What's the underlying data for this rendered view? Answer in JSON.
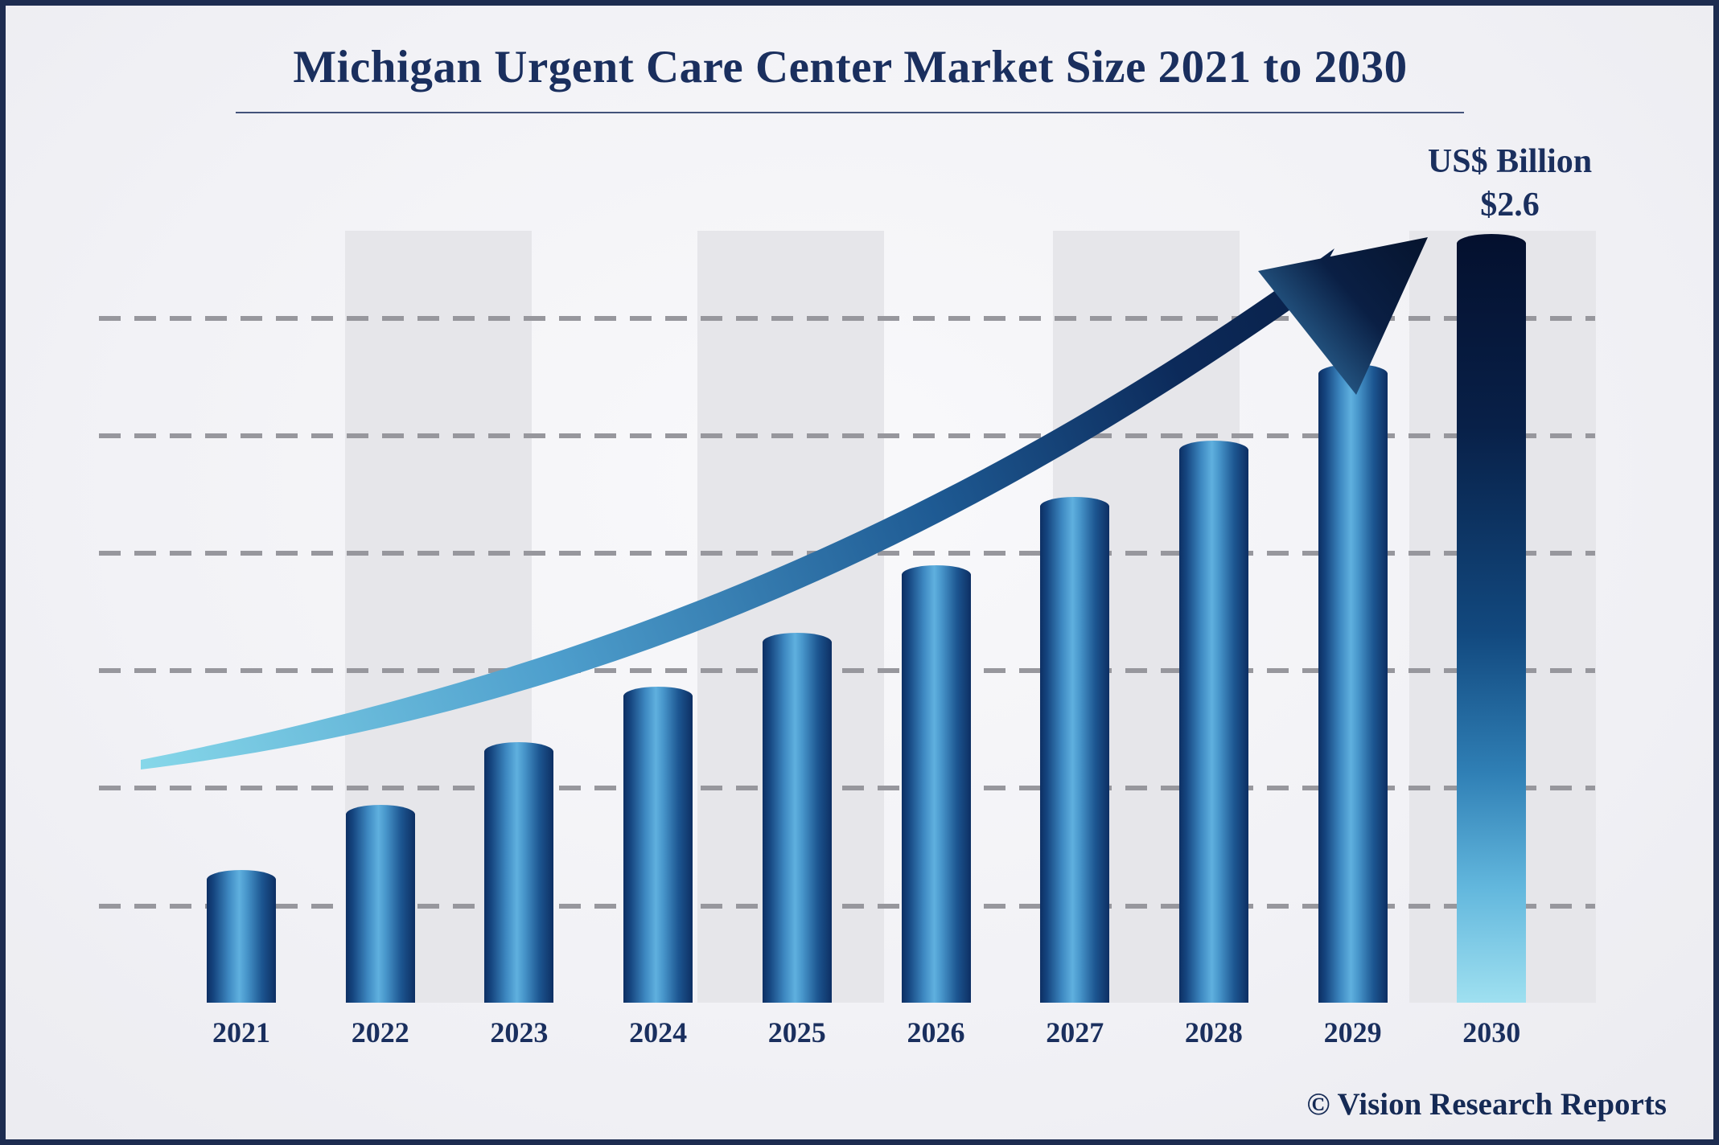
{
  "header": {
    "title": "Michigan Urgent Care Center Market Size 2021 to 2030"
  },
  "annotation": {
    "unit": "US$ Billion",
    "value": "$2.6"
  },
  "footer": {
    "credit": "© Vision Research Reports"
  },
  "chart_data": {
    "type": "bar",
    "title": "Michigan Urgent Care Center Market Size 2021 to 2030",
    "unit": "US$ Billion",
    "categories": [
      "2021",
      "2022",
      "2023",
      "2024",
      "2025",
      "2026",
      "2027",
      "2028",
      "2029",
      "2030"
    ],
    "values": [
      0.45,
      0.67,
      0.88,
      1.07,
      1.25,
      1.48,
      1.71,
      1.9,
      2.16,
      2.6
    ],
    "value_labels": {
      "2030": "$2.6"
    },
    "xlabel": "",
    "ylabel": "US$ Billion",
    "ylim": [
      0,
      2.8
    ],
    "grid": "horizontal-dashed",
    "legend": "none",
    "colors": {
      "bar_edge": "#0d2f63",
      "bar_highlight": "#5fb0de",
      "bar_2030_top": "#04102e",
      "bar_2030_bottom": "#9fe0f0",
      "arrow_tail": "#86d7e9",
      "arrow_head": "#071a3d",
      "title_text": "#1a2f5e",
      "background": "#f2f2f6",
      "border": "#1d2c50",
      "gridline": "#97979d",
      "band": "#e6e6ea"
    }
  }
}
